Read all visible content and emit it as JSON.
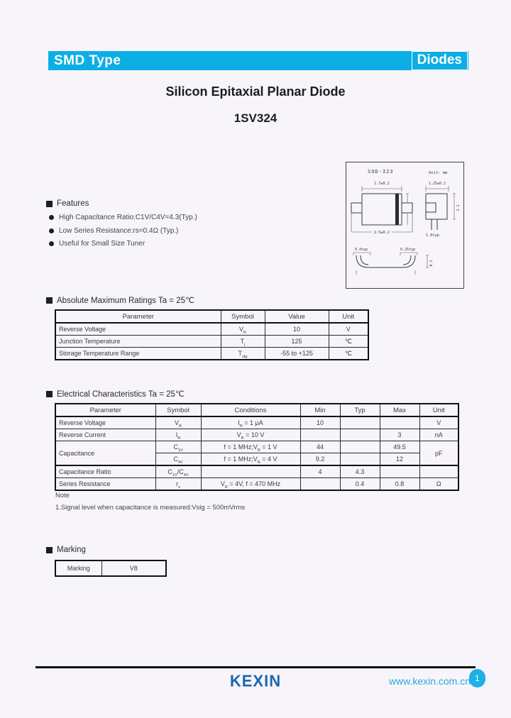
{
  "header": {
    "left_label": "SMD Type",
    "right_label": "Diodes"
  },
  "title": "Silicon Epitaxial Planar Diode",
  "part_number": "1SV324",
  "package_diagram": {
    "name": "SOD-323",
    "unit": "Unit: mm",
    "front_top": "1.7±0.2",
    "front_bottom": "2.5±0.2",
    "side_top": "1.25±0.2",
    "side_bottom": "1.6typ",
    "side_height": "1.1",
    "pad_left": "0.4typ",
    "pad_right": "0.25typ",
    "profile_height": "0.1"
  },
  "features": {
    "heading": "Features",
    "items": [
      "High Capacitance Ratio:C1V/C4V=4.3(Typ.)",
      "Low Series Resistance:rs=0.4Ω (Typ.)",
      "Useful for Small Size Tuner"
    ]
  },
  "amr": {
    "heading": "Absolute Maximum Ratings Ta = 25℃",
    "headers": [
      "Parameter",
      "Symbol",
      "Value",
      "Unit"
    ],
    "rows": [
      {
        "param": "Reverse Voltage",
        "symbol": "V_R_",
        "value": "10",
        "unit": "V"
      },
      {
        "param": "Junction Temperature",
        "symbol": "T_j_",
        "value": "125",
        "unit": "℃"
      },
      {
        "param": "Storage Temperature Range",
        "symbol": "T_stg_",
        "value": "-55 to +125",
        "unit": "℃"
      }
    ]
  },
  "ec": {
    "heading": "Electrical Characteristics Ta = 25℃",
    "headers": [
      "Parameter",
      "Symbol",
      "Conditions",
      "Min",
      "Typ",
      "Max",
      "Unit"
    ],
    "rows": [
      {
        "param": "Reverse Voltage",
        "symbol": "V_R_",
        "conditions": "I_R_ = 1 μA",
        "min": "10",
        "typ": "",
        "max": "",
        "unit": "V"
      },
      {
        "param": "Reverse Current",
        "symbol": "I_R_",
        "conditions": "V_R_ = 10 V",
        "min": "",
        "typ": "",
        "max": "3",
        "unit": "nA"
      },
      {
        "param": "Capacitance",
        "symbol": "C_1V_",
        "conditions": "f = 1 MHz;V_R_ = 1 V",
        "min": "44",
        "typ": "",
        "max": "49.5",
        "unit": "pF"
      },
      {
        "param": "",
        "symbol": "C_4V_",
        "conditions": "f = 1 MHz;V_R_ = 4 V",
        "min": "9.2",
        "typ": "",
        "max": "12",
        "unit": ""
      },
      {
        "param": "Capacitance Ratio",
        "symbol": "C_1V_/C_4V_",
        "conditions": "",
        "min": "4",
        "typ": "4.3",
        "max": "",
        "unit": ""
      },
      {
        "param": "Series Resistance",
        "symbol": "r_s_",
        "conditions": "V_R_ = 4V, f = 470 MHz",
        "min": "",
        "typ": "0.4",
        "max": "0.8",
        "unit": "Ω"
      }
    ]
  },
  "note": {
    "heading": "Note",
    "line1": "1.Signal level when capacitance is measured:Vsig = 500mVrms"
  },
  "marking": {
    "heading": "Marking",
    "label": "Marking",
    "value": "V8"
  },
  "footer": {
    "logo_text": "KEXIN",
    "url": "www.kexin.com.cn",
    "page_number": "1"
  },
  "colors": {
    "accent_cyan": "#0caee6",
    "logo_blue": "#1a66ae",
    "url_blue": "#2ca9e0"
  }
}
